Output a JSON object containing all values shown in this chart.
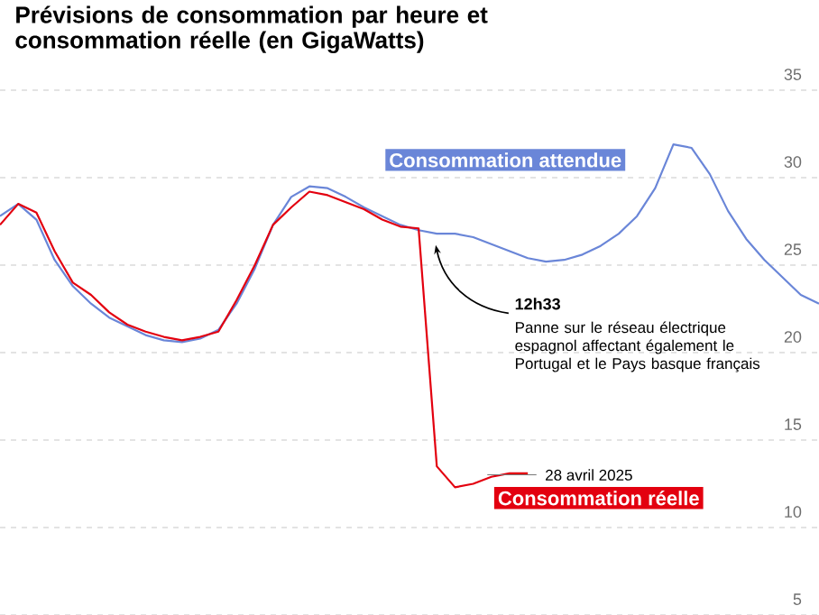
{
  "chart_data": {
    "type": "line",
    "title": "Prévisions de consommation par heure et consommation réelle (en GigaWatts)",
    "categories": [
      null,
      null,
      null,
      null,
      null,
      null,
      null,
      null,
      null,
      null,
      null,
      null,
      null,
      null,
      null,
      null,
      null,
      null,
      null,
      null,
      null,
      null,
      null,
      null,
      null,
      null,
      null,
      null,
      null,
      null,
      null,
      null,
      null,
      null,
      null,
      null,
      null,
      null,
      null,
      null,
      null,
      null,
      null,
      null,
      null,
      null
    ],
    "series": [
      {
        "name": "Consommation attendue",
        "color": "#6a86d8",
        "values": [
          27.8,
          28.5,
          27.6,
          25.3,
          23.8,
          22.8,
          22.0,
          21.5,
          21.0,
          20.7,
          20.6,
          20.8,
          21.3,
          22.8,
          24.8,
          27.3,
          28.9,
          29.5,
          29.4,
          28.9,
          28.3,
          27.8,
          27.3,
          27.0,
          26.8,
          26.8,
          26.6,
          26.2,
          25.8,
          25.4,
          25.2,
          25.3,
          25.6,
          26.1,
          26.8,
          27.8,
          29.4,
          31.9,
          31.7,
          30.2,
          28.1,
          26.5,
          25.3,
          24.3,
          23.3,
          22.8
        ]
      },
      {
        "name": "Consommation réelle",
        "color": "#e3000f",
        "values": [
          27.3,
          28.5,
          28.0,
          25.8,
          24.0,
          23.3,
          22.3,
          21.6,
          21.2,
          20.9,
          20.7,
          20.9,
          21.2,
          23.0,
          25.0,
          27.3,
          28.3,
          29.2,
          29.0,
          28.6,
          28.2,
          27.6,
          27.2,
          27.1,
          13.5,
          12.3,
          12.5,
          12.9,
          13.1,
          13.1,
          null,
          null,
          null,
          null,
          null,
          null,
          null,
          null,
          null,
          null,
          null,
          null,
          null,
          null,
          null,
          null
        ]
      }
    ],
    "ylim": [
      5,
      35
    ],
    "yticks": [
      5,
      10,
      15,
      20,
      25,
      30,
      35
    ],
    "grid": "y",
    "tick_labels": "y",
    "annotations": [
      "12h33",
      "Panne sur le réseau électrique espagnol affectant également le Portugal et le Pays basque français",
      "28 avril 2025"
    ]
  }
}
